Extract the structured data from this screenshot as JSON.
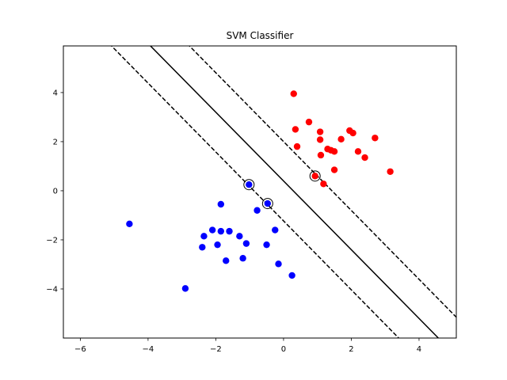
{
  "chart_data": {
    "type": "scatter",
    "title": "SVM Classifier",
    "xlabel": "",
    "ylabel": "",
    "xlim": [
      -6.5,
      5.1
    ],
    "ylim": [
      -6.0,
      5.9
    ],
    "xticks": [
      -6,
      -4,
      -2,
      0,
      2,
      4
    ],
    "yticks": [
      -4,
      -2,
      0,
      2,
      4
    ],
    "grid": false,
    "series": [
      {
        "color": "#ff0000",
        "points": [
          [
            0.3,
            3.95
          ],
          [
            0.35,
            2.5
          ],
          [
            0.4,
            1.8
          ],
          [
            0.75,
            2.8
          ],
          [
            1.08,
            2.4
          ],
          [
            1.08,
            2.08
          ],
          [
            1.1,
            1.45
          ],
          [
            1.3,
            1.7
          ],
          [
            1.4,
            1.65
          ],
          [
            1.5,
            1.6
          ],
          [
            1.5,
            0.85
          ],
          [
            1.7,
            2.1
          ],
          [
            1.95,
            2.45
          ],
          [
            2.05,
            2.35
          ],
          [
            2.2,
            1.6
          ],
          [
            2.4,
            1.35
          ],
          [
            2.7,
            2.15
          ],
          [
            3.15,
            0.78
          ],
          [
            0.93,
            0.6
          ],
          [
            1.18,
            0.28
          ]
        ]
      },
      {
        "color": "#0000ff",
        "points": [
          [
            -4.55,
            -1.35
          ],
          [
            -2.9,
            -3.98
          ],
          [
            -2.4,
            -2.3
          ],
          [
            -2.35,
            -1.85
          ],
          [
            -2.1,
            -1.6
          ],
          [
            -1.95,
            -2.2
          ],
          [
            -1.85,
            -1.65
          ],
          [
            -1.85,
            -0.55
          ],
          [
            -1.7,
            -2.85
          ],
          [
            -1.6,
            -1.65
          ],
          [
            -1.3,
            -1.85
          ],
          [
            -1.2,
            -2.75
          ],
          [
            -1.1,
            -2.15
          ],
          [
            -1.02,
            0.25
          ],
          [
            -0.78,
            -0.8
          ],
          [
            -0.5,
            -2.2
          ],
          [
            -0.47,
            -0.52
          ],
          [
            -0.25,
            -1.6
          ],
          [
            -0.15,
            -2.98
          ],
          [
            0.25,
            -3.45
          ]
        ]
      }
    ],
    "support_vectors": [
      [
        -1.02,
        0.25
      ],
      [
        -0.47,
        -0.52
      ],
      [
        0.93,
        0.6
      ]
    ],
    "decision_boundary": {
      "solid": [
        [
          -4.0,
          6.0
        ],
        [
          4.57,
          -6.0
        ]
      ],
      "dashed_upper": [
        [
          -2.85,
          6.0
        ],
        [
          5.1,
          -5.15
        ]
      ],
      "dashed_lower": [
        [
          -5.15,
          6.0
        ],
        [
          3.4,
          -6.0
        ]
      ]
    }
  }
}
